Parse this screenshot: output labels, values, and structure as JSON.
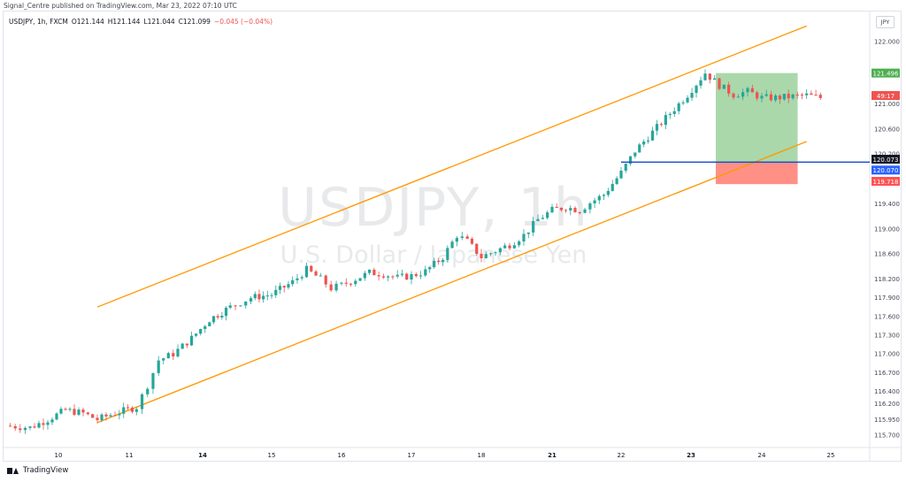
{
  "header": {
    "published_by": "Signal_Centre published on TradingView.com, Mar 23, 2022 07:10 UTC"
  },
  "legend": {
    "symbol": "USDJPY, 1h, FXCM",
    "open": "O121.144",
    "high": "H121.144",
    "low": "L121.044",
    "close": "C121.099",
    "change": "−0.045 (−0.04%)"
  },
  "watermark": {
    "symbol": "USDJPY, 1h",
    "description": "U.S. Dollar / Japanese Yen"
  },
  "currency_button": "JPY",
  "footer": {
    "brand": "TradingView"
  },
  "colors": {
    "up": "#26a69a",
    "down": "#ef5350",
    "channel": "#ff9800",
    "entry_line": "#1848cc",
    "target_zone": "#a5d6a7",
    "stop_zone": "#ff8a80"
  },
  "chart_data": {
    "type": "candlestick",
    "title": "USDJPY, 1h, FXCM",
    "x_ticks": [
      "10",
      "11",
      "14",
      "15",
      "16",
      "17",
      "18",
      "21",
      "22",
      "23",
      "24",
      "25"
    ],
    "x_ticks_bold": [
      "14",
      "21",
      "23"
    ],
    "y_ticks": [
      "122.000",
      "121.000",
      "120.600",
      "120.200",
      "119.400",
      "119.000",
      "118.600",
      "118.200",
      "117.900",
      "117.600",
      "117.300",
      "117.000",
      "116.700",
      "116.400",
      "116.200",
      "115.950",
      "115.700"
    ],
    "y_range": [
      115.6,
      122.25
    ],
    "price_labels": [
      {
        "text": "121.496",
        "color": "#4caf50"
      },
      {
        "text": "49:17",
        "color": "#ef5350"
      },
      {
        "text": "120.073",
        "color": "#131722"
      },
      {
        "text": "120.070",
        "color": "#2962ff"
      },
      {
        "text": "119.718",
        "color": "#ff5252"
      }
    ],
    "position": {
      "type": "long",
      "entry": 120.07,
      "target": 121.496,
      "stop": 119.718,
      "start_x": 23.35,
      "end_x": 24.52
    },
    "entry_line": {
      "price": 120.07,
      "from_x": 22.0,
      "to_x": 25.5
    },
    "channel": {
      "upper": {
        "x": [
          10.55,
          24.65
        ],
        "y": [
          117.75,
          122.25
        ]
      },
      "lower": {
        "x": [
          10.55,
          24.65
        ],
        "y": [
          115.9,
          120.4
        ]
      }
    },
    "price_path": [
      {
        "x": 9.25,
        "y": 115.85
      },
      {
        "x": 9.6,
        "y": 115.82
      },
      {
        "x": 9.85,
        "y": 115.95
      },
      {
        "x": 10.1,
        "y": 116.1
      },
      {
        "x": 10.35,
        "y": 116.05
      },
      {
        "x": 10.55,
        "y": 115.95
      },
      {
        "x": 10.8,
        "y": 116.05
      },
      {
        "x": 11.1,
        "y": 116.15
      },
      {
        "x": 11.25,
        "y": 116.5
      },
      {
        "x": 11.4,
        "y": 116.9
      },
      {
        "x": 11.6,
        "y": 117.0
      },
      {
        "x": 11.85,
        "y": 117.25
      },
      {
        "x": 12.1,
        "y": 117.55
      },
      {
        "x": 12.4,
        "y": 117.75
      },
      {
        "x": 12.7,
        "y": 117.9
      },
      {
        "x": 13.0,
        "y": 117.95
      },
      {
        "x": 13.3,
        "y": 118.15
      },
      {
        "x": 13.5,
        "y": 118.35
      },
      {
        "x": 13.7,
        "y": 118.2
      },
      {
        "x": 13.85,
        "y": 118.05
      },
      {
        "x": 14.0,
        "y": 118.1
      },
      {
        "x": 14.2,
        "y": 118.2
      },
      {
        "x": 14.4,
        "y": 118.3
      },
      {
        "x": 14.6,
        "y": 118.28
      },
      {
        "x": 14.8,
        "y": 118.22
      },
      {
        "x": 15.0,
        "y": 118.25
      },
      {
        "x": 15.2,
        "y": 118.32
      },
      {
        "x": 15.45,
        "y": 118.55
      },
      {
        "x": 15.65,
        "y": 118.9
      },
      {
        "x": 15.8,
        "y": 118.8
      },
      {
        "x": 16.0,
        "y": 118.55
      },
      {
        "x": 16.2,
        "y": 118.65
      },
      {
        "x": 16.4,
        "y": 118.75
      },
      {
        "x": 16.6,
        "y": 118.9
      },
      {
        "x": 16.8,
        "y": 119.15
      },
      {
        "x": 17.0,
        "y": 119.3
      },
      {
        "x": 17.2,
        "y": 119.35
      },
      {
        "x": 17.4,
        "y": 119.3
      },
      {
        "x": 17.55,
        "y": 119.42
      },
      {
        "x": 17.75,
        "y": 119.55
      },
      {
        "x": 18.0,
        "y": 119.9
      },
      {
        "x": 18.2,
        "y": 120.25
      },
      {
        "x": 18.45,
        "y": 120.55
      },
      {
        "x": 18.7,
        "y": 120.85
      },
      {
        "x": 18.95,
        "y": 121.15
      },
      {
        "x": 19.2,
        "y": 121.5
      },
      {
        "x": 19.4,
        "y": 121.3
      },
      {
        "x": 19.6,
        "y": 121.15
      },
      {
        "x": 19.8,
        "y": 121.2
      },
      {
        "x": 20.0,
        "y": 121.1
      },
      {
        "x": 20.2,
        "y": 121.1
      },
      {
        "x": 20.45,
        "y": 121.12
      },
      {
        "x": 20.65,
        "y": 121.14
      },
      {
        "x": 20.85,
        "y": 121.1
      }
    ]
  }
}
